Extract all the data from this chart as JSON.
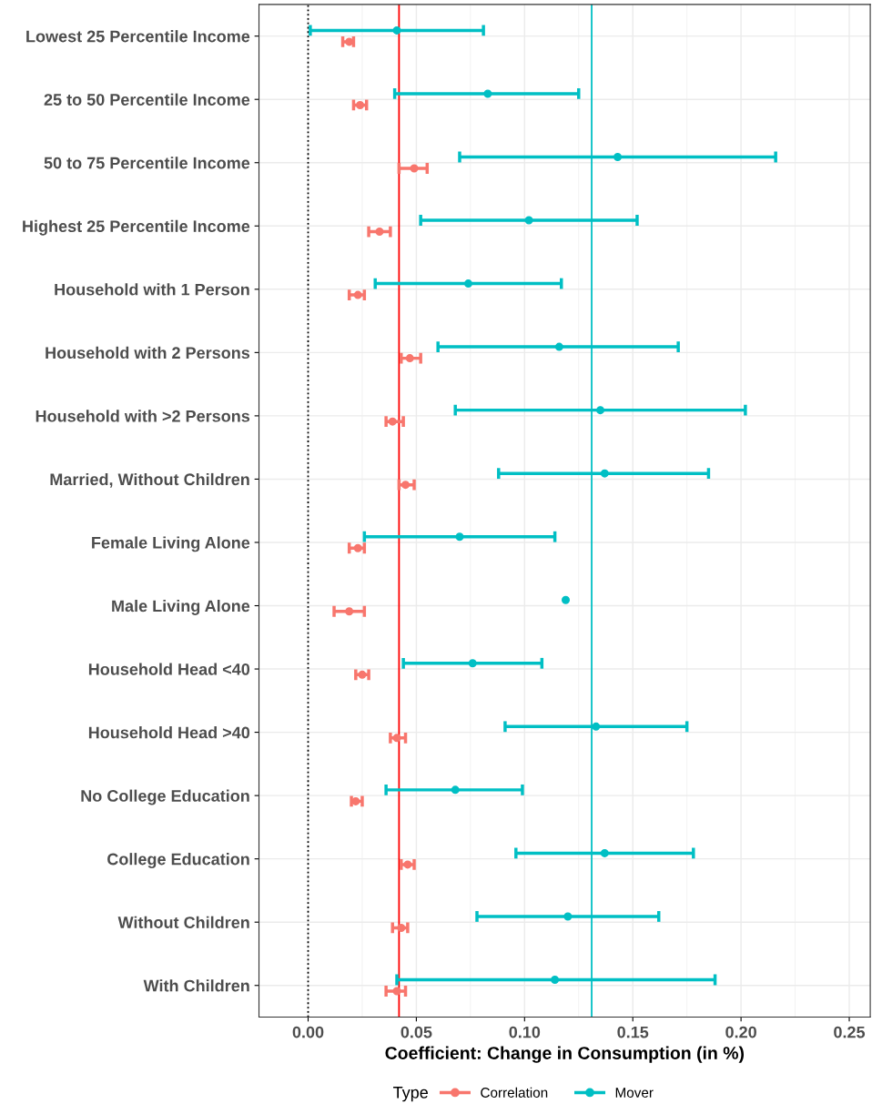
{
  "chart_data": {
    "type": "scatter",
    "orientation": "horizontal",
    "xlabel": "Coefficient: Change in Consumption (in %)",
    "legend_title": "Type",
    "categories": [
      "Lowest 25 Percentile Income",
      "25 to 50 Percentile Income",
      "50 to 75 Percentile Income",
      "Highest 25 Percentile Income",
      "Household with 1 Person",
      "Household with 2 Persons",
      "Household with >2 Persons",
      "Married, Without Children",
      "Female Living Alone",
      "Male Living Alone",
      "Household Head <40",
      "Household Head >40",
      "No College Education",
      "College Education",
      "Without Children",
      "With Children"
    ],
    "series": [
      {
        "name": "Correlation",
        "color": "#f8766d",
        "values": [
          0.019,
          0.024,
          0.049,
          0.033,
          0.023,
          0.047,
          0.039,
          0.045,
          0.023,
          0.019,
          0.025,
          0.041,
          0.022,
          0.046,
          0.043,
          0.041
        ],
        "errors": [
          [
            0.016,
            0.021
          ],
          [
            0.021,
            0.027
          ],
          [
            0.042,
            0.055
          ],
          [
            0.028,
            0.038
          ],
          [
            0.019,
            0.026
          ],
          [
            0.043,
            0.052
          ],
          [
            0.036,
            0.044
          ],
          [
            0.042,
            0.049
          ],
          [
            0.019,
            0.026
          ],
          [
            0.012,
            0.026
          ],
          [
            0.022,
            0.028
          ],
          [
            0.038,
            0.045
          ],
          [
            0.02,
            0.025
          ],
          [
            0.043,
            0.049
          ],
          [
            0.039,
            0.046
          ],
          [
            0.036,
            0.045
          ]
        ]
      },
      {
        "name": "Mover",
        "color": "#00bfc4",
        "values": [
          0.041,
          0.083,
          0.143,
          0.102,
          0.074,
          0.116,
          0.135,
          0.137,
          0.07,
          0.119,
          0.076,
          0.133,
          0.068,
          0.137,
          0.12,
          0.114
        ],
        "errors": [
          [
            0.001,
            0.081
          ],
          [
            0.04,
            0.125
          ],
          [
            0.07,
            0.216
          ],
          [
            0.052,
            0.152
          ],
          [
            0.031,
            0.117
          ],
          [
            0.06,
            0.171
          ],
          [
            0.068,
            0.202
          ],
          [
            0.088,
            0.185
          ],
          [
            0.026,
            0.114
          ],
          null,
          [
            0.044,
            0.108
          ],
          [
            0.091,
            0.175
          ],
          [
            0.036,
            0.099
          ],
          [
            0.096,
            0.178
          ],
          [
            0.078,
            0.162
          ],
          [
            0.041,
            0.188
          ]
        ]
      }
    ],
    "ref_lines": [
      {
        "axis": "x",
        "value": 0,
        "color": "#000000",
        "line_style": "dotted"
      },
      {
        "axis": "x",
        "value": 0.042,
        "color": "#ff0000",
        "line_style": "solid"
      },
      {
        "axis": "x",
        "value": 0.131,
        "color": "#00bfc4",
        "line_style": "solid"
      }
    ],
    "xlim": [
      -0.0227,
      0.2597
    ],
    "xticks": [
      {
        "value": 0,
        "label": "0.00"
      },
      0.05,
      {
        "value": 0.1,
        "label": "0.10"
      },
      0.15,
      {
        "value": 0.2,
        "label": "0.20"
      },
      0.25
    ],
    "grid": true,
    "legend": "bottom",
    "marker": "circle"
  }
}
